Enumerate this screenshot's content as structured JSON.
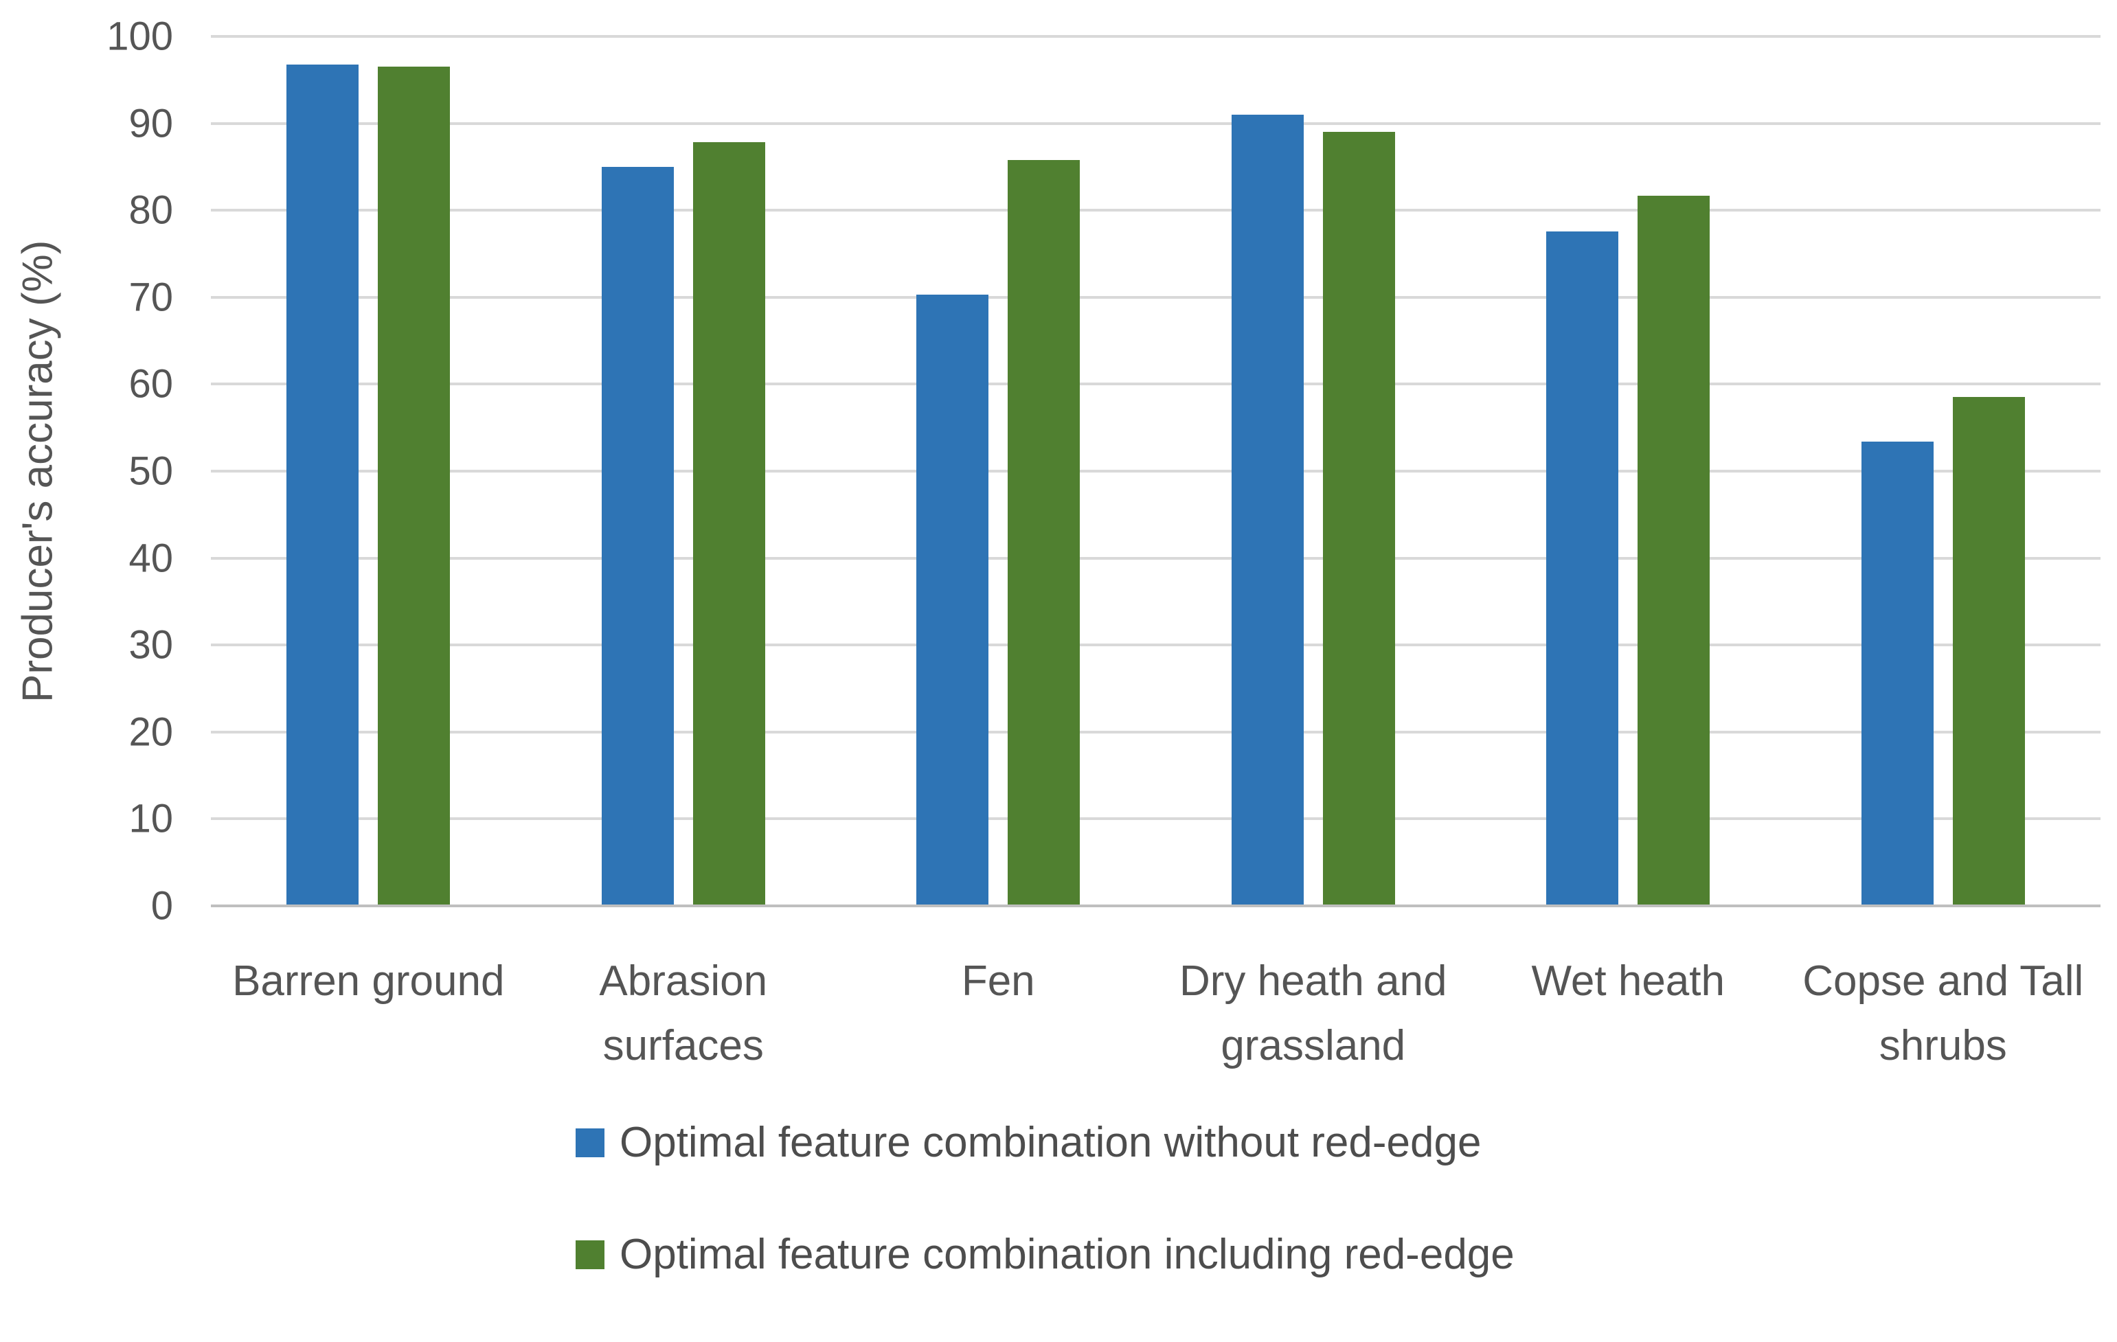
{
  "chart_data": {
    "type": "bar",
    "title": "",
    "xlabel": "",
    "ylabel": "Producer's accuracy (%)",
    "ylim": [
      0,
      100
    ],
    "yticks": [
      0,
      10,
      20,
      30,
      40,
      50,
      60,
      70,
      80,
      90,
      100
    ],
    "grid": "horizontal",
    "legend_position": "bottom",
    "categories": [
      "Barren ground",
      "Abrasion surfaces",
      "Fen",
      "Dry heath and grassland",
      "Wet heath",
      "Copse and Tall shrubs"
    ],
    "series": [
      {
        "name": "Optimal feature combination without red-edge",
        "color": "#2E74B5",
        "values": [
          96.8,
          85.0,
          70.3,
          91.0,
          77.6,
          53.4
        ]
      },
      {
        "name": "Optimal feature combination including red-edge",
        "color": "#508030",
        "values": [
          96.5,
          87.8,
          85.8,
          89.0,
          81.7,
          58.5
        ]
      }
    ]
  },
  "style": {
    "background": "#FFFFFF",
    "gridline_color": "#D9D9D9",
    "axis_line_color": "#BFBFBF",
    "text_color": "#555555"
  }
}
